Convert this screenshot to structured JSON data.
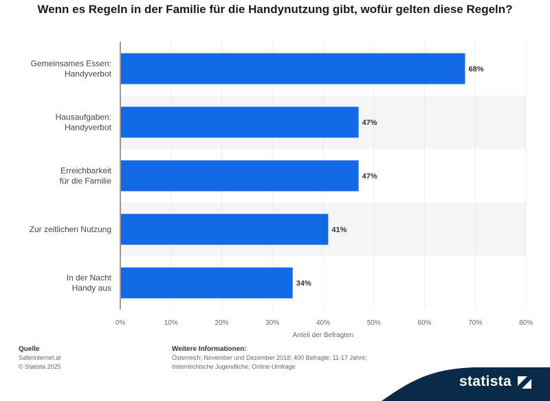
{
  "chart_data": {
    "type": "bar",
    "orientation": "horizontal",
    "title": "Wenn es Regeln in der Familie für die Handynutzung gibt, wofür gelten diese Regeln?",
    "categories": [
      [
        "Gemeinsames Essen:",
        "Handyverbot"
      ],
      [
        "Hausaufgaben:",
        "Handyverbot"
      ],
      [
        "Erreichbarkeit",
        "für die Familie"
      ],
      [
        "Zur zeitlichen Nutzung"
      ],
      [
        "In der Nacht",
        "Handy aus"
      ]
    ],
    "values": [
      68,
      47,
      47,
      41,
      34
    ],
    "value_labels": [
      "68%",
      "47%",
      "47%",
      "41%",
      "34%"
    ],
    "xlabel": "Anteil der Befragten",
    "xlim": [
      0,
      80
    ],
    "ticks": [
      "0%",
      "10%",
      "20%",
      "30%",
      "40%",
      "50%",
      "60%",
      "70%",
      "80%"
    ],
    "grid": true,
    "bar_color": "#1469e6"
  },
  "footer": {
    "source_heading": "Quelle",
    "source_lines": [
      "Saferinternet.at",
      "© Statista 2025"
    ],
    "info_heading": "Weitere Informationen:",
    "info_lines": [
      "Österreich; November und Dezember 2018; 400 Befragte; 11-17 Jahre;",
      "österreichische Jugendliche; Online-Umfrage"
    ]
  },
  "brand": {
    "name": "statista",
    "color": "#0a2a4a"
  }
}
